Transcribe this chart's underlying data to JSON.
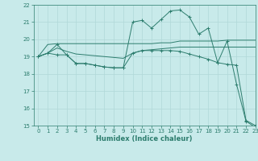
{
  "xlabel": "Humidex (Indice chaleur)",
  "bg_color": "#c8eaea",
  "line_color": "#2d7d6e",
  "grid_color": "#b0d8d8",
  "xlim": [
    -0.5,
    23
  ],
  "ylim": [
    15,
    22
  ],
  "x": [
    0,
    1,
    2,
    3,
    4,
    5,
    6,
    7,
    8,
    9,
    10,
    11,
    12,
    13,
    14,
    15,
    16,
    17,
    18,
    19,
    20,
    21,
    22,
    23
  ],
  "line_jagged": [
    19.0,
    19.2,
    19.7,
    19.1,
    18.6,
    18.6,
    18.5,
    18.4,
    18.35,
    18.35,
    21.0,
    21.1,
    20.65,
    21.15,
    21.65,
    21.7,
    21.3,
    20.3,
    20.65,
    18.65,
    19.9,
    17.4,
    15.25,
    14.9
  ],
  "line_flat_top": [
    19.0,
    19.7,
    19.75,
    19.75,
    19.75,
    19.75,
    19.75,
    19.75,
    19.75,
    19.75,
    19.75,
    19.75,
    19.75,
    19.8,
    19.8,
    19.9,
    19.9,
    19.9,
    19.9,
    19.9,
    19.95,
    19.95,
    19.95,
    19.95
  ],
  "line_mid": [
    19.0,
    19.2,
    19.5,
    19.3,
    19.15,
    19.1,
    19.05,
    19.0,
    18.95,
    18.9,
    19.2,
    19.35,
    19.4,
    19.45,
    19.5,
    19.55,
    19.55,
    19.55,
    19.55,
    19.55,
    19.55,
    19.55,
    19.55,
    19.55
  ],
  "line_descend": [
    19.0,
    19.2,
    19.1,
    19.1,
    18.6,
    18.6,
    18.5,
    18.4,
    18.35,
    18.35,
    19.2,
    19.35,
    19.35,
    19.35,
    19.35,
    19.3,
    19.15,
    19.0,
    18.85,
    18.65,
    18.55,
    18.5,
    15.3,
    15.0
  ]
}
